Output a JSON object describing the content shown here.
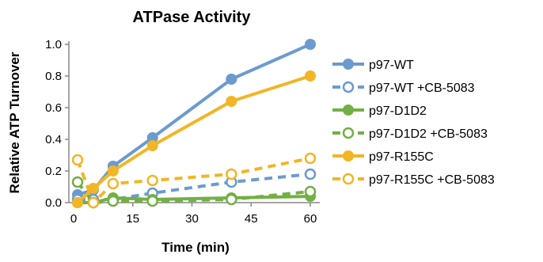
{
  "chart_data": {
    "type": "line",
    "title": "ATPase Activity",
    "xlabel": "Time (min)",
    "ylabel": "Relative ATP Turnover",
    "xlim": [
      -1,
      62
    ],
    "ylim": [
      0,
      1.0
    ],
    "xticks": [
      0,
      15,
      30,
      45,
      60
    ],
    "yticks": [
      "0.0",
      "0.2",
      "0.4",
      "0.6",
      "0.8",
      "1.0"
    ],
    "x": [
      1,
      5,
      10,
      20,
      40,
      60
    ],
    "grid": false,
    "legend_position": "right",
    "series": [
      {
        "name": "p97-WT",
        "color": "#6b9acf",
        "style": "solid",
        "marker": "filled",
        "values": [
          0.05,
          0.08,
          0.23,
          0.41,
          0.78,
          1.0
        ]
      },
      {
        "name": "p97-WT +CB-5083",
        "color": "#6b9acf",
        "style": "dashed",
        "marker": "open",
        "values": [
          0.02,
          0.02,
          0.02,
          0.06,
          0.13,
          0.18
        ]
      },
      {
        "name": "p97-D1D2",
        "color": "#72b043",
        "style": "solid",
        "marker": "filled",
        "values": [
          0.0,
          0.0,
          0.03,
          0.02,
          0.03,
          0.04
        ]
      },
      {
        "name": "p97-D1D2 +CB-5083",
        "color": "#72b043",
        "style": "dashed",
        "marker": "open",
        "values": [
          0.13,
          0.0,
          0.01,
          0.01,
          0.02,
          0.07
        ]
      },
      {
        "name": "p97-R155C",
        "color": "#f2b526",
        "style": "solid",
        "marker": "filled",
        "values": [
          0.0,
          0.09,
          0.2,
          0.36,
          0.64,
          0.8
        ]
      },
      {
        "name": "p97-R155C +CB-5083",
        "color": "#f2b526",
        "style": "dashed",
        "marker": "open",
        "values": [
          0.27,
          0.0,
          0.12,
          0.14,
          0.18,
          0.28
        ]
      }
    ]
  }
}
